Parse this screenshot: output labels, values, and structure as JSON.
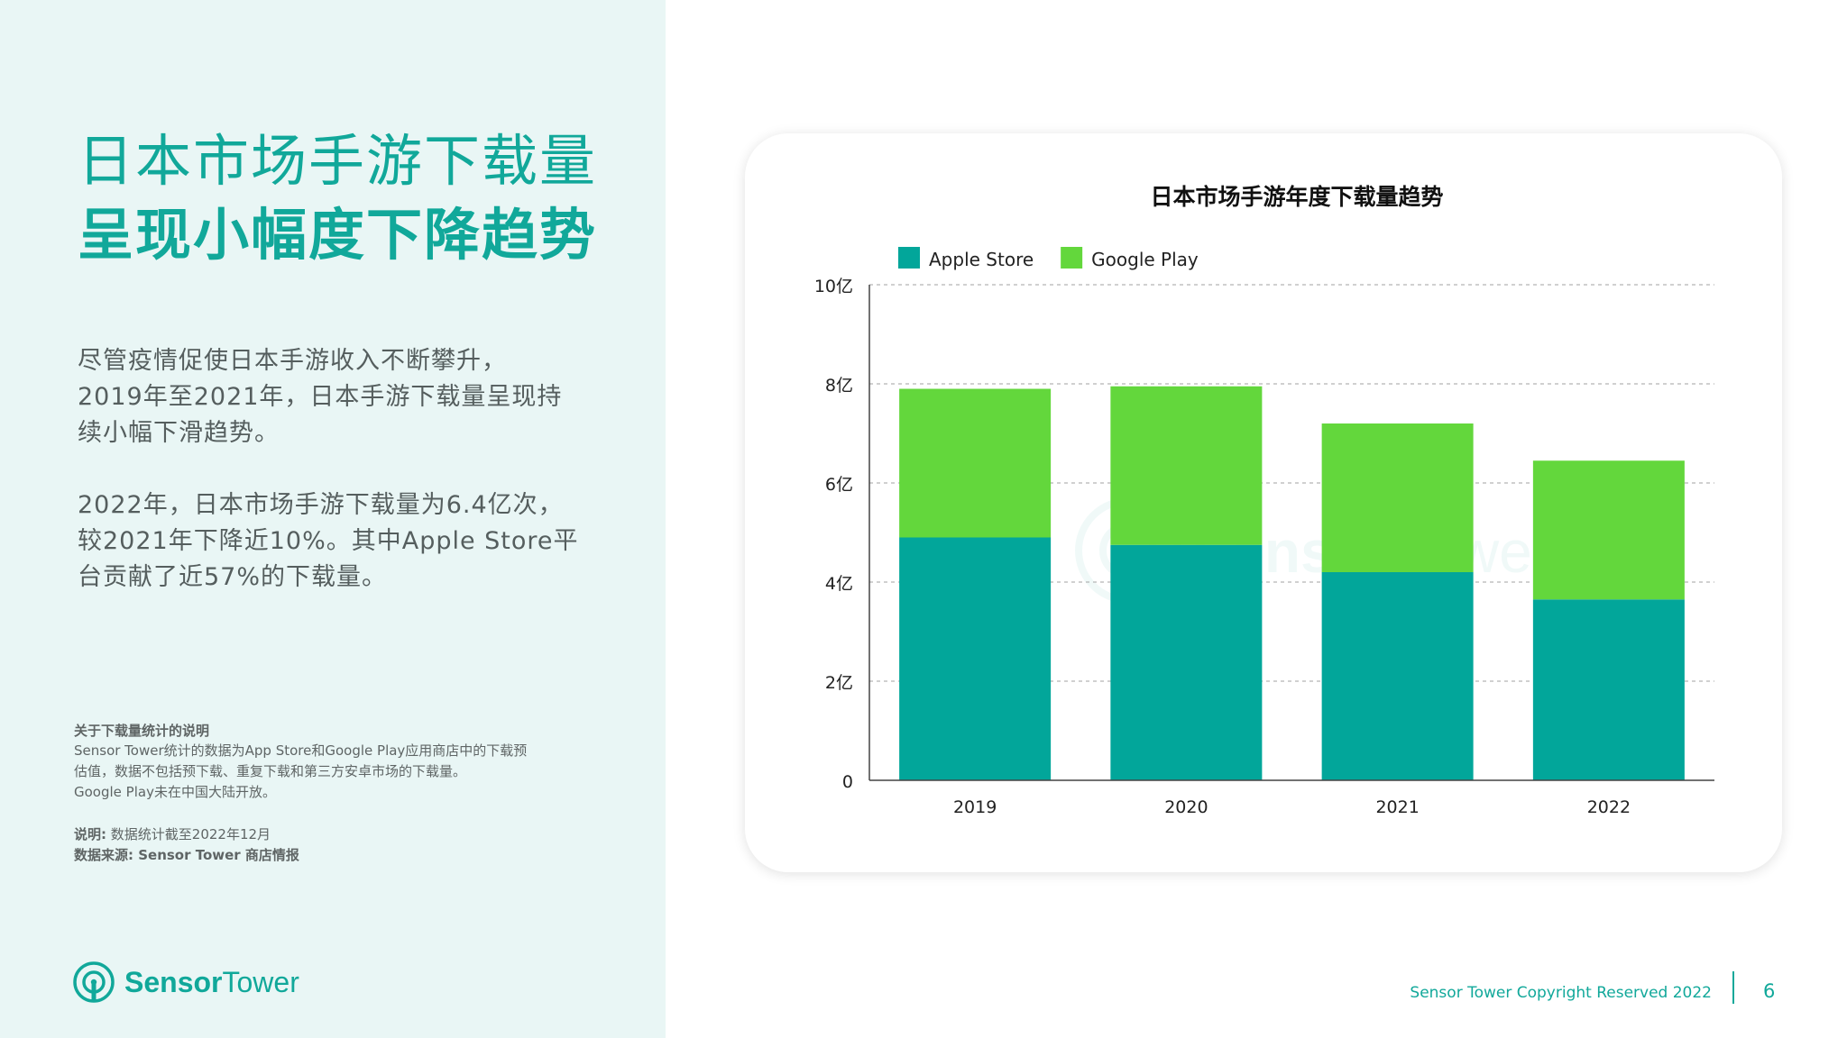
{
  "headline": {
    "line1": "日本市场手游下载量",
    "line2": "呈现小幅度下降趋势"
  },
  "paragraph1": [
    "尽管疫情促使日本手游收入不断攀升，",
    "2019年至2021年，日本手游下载量呈现持",
    "续小幅下滑趋势。"
  ],
  "paragraph2": [
    "2022年，日本市场手游下载量为6.4亿次，",
    "较2021年下降近10%。其中Apple  Store平",
    "台贡献了近57%的下载量。"
  ],
  "notes": {
    "title": "关于下载量统计的说明",
    "lines": [
      "Sensor Tower统计的数据为App Store和Google Play应用商店中的下载预",
      "估值，数据不包括预下载、重复下载和第三方安卓市场的下载量。",
      "Google Play未在中国大陆开放。"
    ],
    "explain_label": "说明:",
    "explain_value": "数据统计截至2022年12月",
    "source": "数据来源: Sensor Tower 商店情报"
  },
  "brand": {
    "name_part1": "Sensor",
    "name_part2": "Tower"
  },
  "watermark": {
    "name_part1": "Sensor",
    "name_part2": "Tower"
  },
  "footer": {
    "copyright": "Sensor Tower Copyright Reserved 2022",
    "page": "6"
  },
  "colors": {
    "brand": "#11a89a",
    "apple": "#02a69a",
    "google": "#63d73c",
    "panel_bg": "#e9f6f5"
  },
  "chart_data": {
    "type": "bar",
    "stacked": true,
    "title": "日本市场手游年度下载量趋势",
    "categories": [
      "2019",
      "2020",
      "2021",
      "2022"
    ],
    "series": [
      {
        "name": "Apple Store",
        "color": "#02a69a",
        "values": [
          4.9,
          4.75,
          4.2,
          3.65
        ]
      },
      {
        "name": "Google Play",
        "color": "#63d73c",
        "values": [
          3.0,
          3.2,
          3.0,
          2.8
        ]
      }
    ],
    "y_ticks": [
      {
        "value": 0,
        "label": "0"
      },
      {
        "value": 2,
        "label": "2亿"
      },
      {
        "value": 4,
        "label": "4亿"
      },
      {
        "value": 6,
        "label": "6亿"
      },
      {
        "value": 8,
        "label": "8亿"
      },
      {
        "value": 10,
        "label": "10亿"
      }
    ],
    "ylim": [
      0,
      10
    ],
    "grid": true,
    "legend_position": "top-left"
  }
}
